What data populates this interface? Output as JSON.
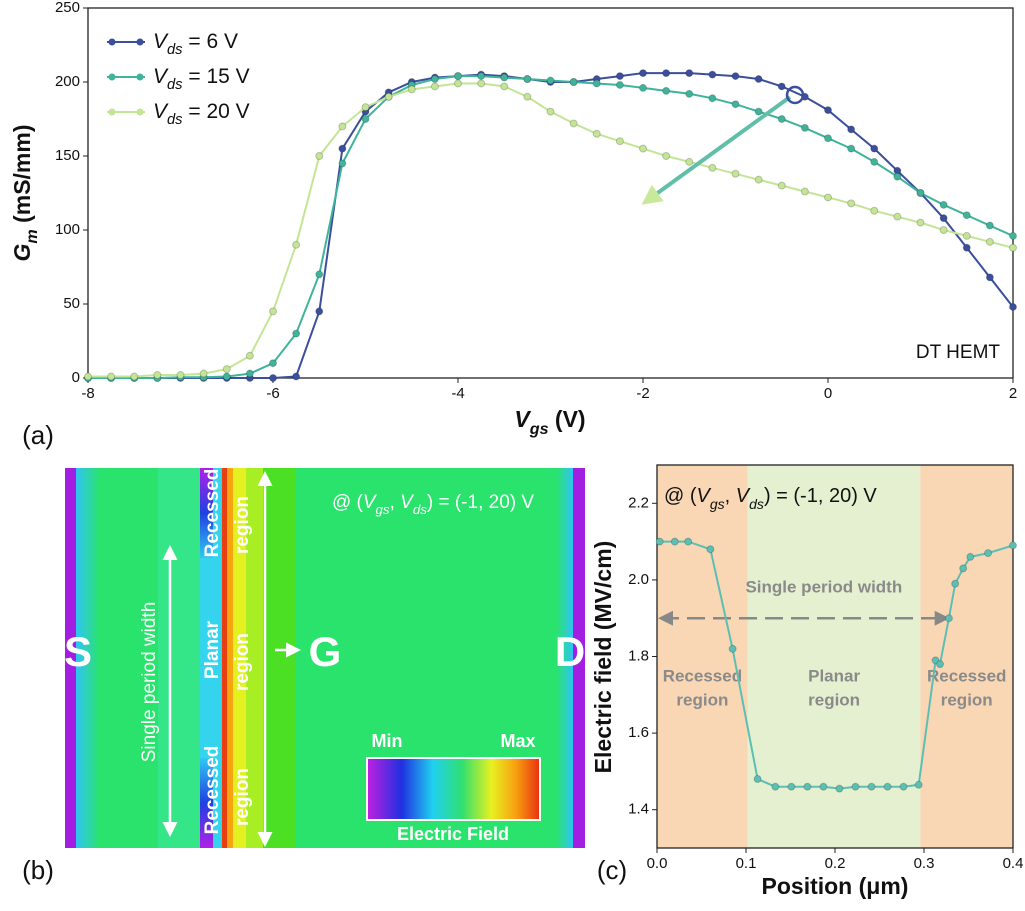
{
  "chart_data": [
    {
      "type": "line",
      "panel_label": "(a)",
      "xlabel": "Vgs (V)",
      "ylabel": "Gm (mS/mm)",
      "annotation": "DT HEMT",
      "xlim": [
        -8,
        2
      ],
      "ylim": [
        0,
        250
      ],
      "xticks": [
        -8,
        -6,
        -4,
        -2,
        0,
        2
      ],
      "yticks": [
        0,
        50,
        100,
        150,
        200,
        250
      ],
      "legend": "upper left",
      "x": [
        -8,
        -7.75,
        -7.5,
        -7.25,
        -7,
        -6.75,
        -6.5,
        -6.25,
        -6,
        -5.75,
        -5.5,
        -5.25,
        -5,
        -4.75,
        -4.5,
        -4.25,
        -4,
        -3.75,
        -3.5,
        -3.25,
        -3,
        -2.75,
        -2.5,
        -2.25,
        -2,
        -1.75,
        -1.5,
        -1.25,
        -1,
        -0.75,
        -0.5,
        -0.25,
        0,
        0.25,
        0.5,
        0.75,
        1,
        1.25,
        1.5,
        1.75,
        2
      ],
      "series": [
        {
          "name": "Vds = 6 V",
          "color": "#3b4f9c",
          "values": [
            0,
            0,
            0,
            0,
            0,
            0,
            0,
            0,
            0,
            1,
            45,
            155,
            180,
            193,
            200,
            203,
            204,
            205,
            204,
            202,
            200,
            200,
            202,
            204,
            206,
            206,
            206,
            205,
            204,
            202,
            197,
            190,
            181,
            168,
            155,
            140,
            125,
            108,
            88,
            68,
            48
          ]
        },
        {
          "name": "Vds = 15 V",
          "color": "#3fb49a",
          "values": [
            0,
            0,
            0,
            0,
            0.5,
            0.5,
            1,
            3,
            10,
            30,
            70,
            145,
            175,
            190,
            198,
            202,
            204,
            204,
            203,
            202,
            201,
            200,
            199,
            198,
            196,
            194,
            192,
            189,
            185,
            180,
            175,
            169,
            162,
            155,
            146,
            136,
            125,
            117,
            110,
            103,
            96
          ]
        },
        {
          "name": "Vds = 20 V",
          "color": "#c3e595",
          "values": [
            1,
            1,
            1,
            2,
            2,
            3,
            6,
            15,
            45,
            90,
            150,
            170,
            183,
            190,
            195,
            197,
            199,
            199,
            197,
            190,
            180,
            172,
            165,
            160,
            155,
            150,
            146,
            142,
            138,
            134,
            130,
            126,
            122,
            118,
            113,
            109,
            105,
            100,
            96,
            92,
            88
          ]
        }
      ]
    },
    {
      "type": "line",
      "panel_label": "(c)",
      "xlabel": "Position (μm)",
      "ylabel": "Electric field (MV/cm)",
      "annotation": "@ (Vgs, Vds) = (-1, 20) V",
      "xlim": [
        0,
        0.4
      ],
      "ylim": [
        1.3,
        2.3
      ],
      "xticks": [
        {
          "value": 0,
          "label": "0.0"
        },
        0.1,
        0.2,
        0.3,
        0.4
      ],
      "yticks": [
        1.4,
        1.6,
        1.8,
        {
          "value": 2,
          "label": "2.0"
        },
        2.2
      ],
      "regions": [
        {
          "from": 0,
          "to": 0.102,
          "color": "#f9d6b4",
          "label": [
            "Recessed",
            "region"
          ]
        },
        {
          "from": 0.102,
          "to": 0.296,
          "color": "#e4f0cf",
          "label": [
            "Planar",
            "region"
          ]
        },
        {
          "from": 0.296,
          "to": 0.4,
          "color": "#f9d6b4",
          "label": [
            "Recessed",
            "region"
          ]
        }
      ],
      "span": {
        "from": 0,
        "to": 0.33,
        "y": 1.9,
        "label": "Single period width"
      },
      "x": [
        0.003,
        0.02,
        0.035,
        0.06,
        0.085,
        0.113,
        0.133,
        0.151,
        0.169,
        0.187,
        0.205,
        0.223,
        0.241,
        0.259,
        0.277,
        0.294,
        0.313,
        0.318,
        0.328,
        0.335,
        0.344,
        0.352,
        0.372,
        0.4
      ],
      "series": [
        {
          "color": "#5cbfb4",
          "values": [
            2.1,
            2.1,
            2.1,
            2.08,
            1.82,
            1.48,
            1.46,
            1.46,
            1.46,
            1.46,
            1.455,
            1.46,
            1.46,
            1.46,
            1.46,
            1.465,
            1.79,
            1.78,
            1.9,
            1.99,
            2.03,
            2.06,
            2.07,
            2.09
          ]
        }
      ]
    }
  ],
  "panel_b": {
    "panel_label": "(b)",
    "electrodes": [
      "S",
      "G",
      "D"
    ],
    "annotation": "@ (Vgs, Vds) = (-1, 20) V",
    "left_column": [
      "Recessed",
      "Planar",
      "Recessed"
    ],
    "right_column": [
      "region",
      "region",
      "region"
    ],
    "width_label": "Single period width",
    "colorbar": {
      "min": "Min",
      "max": "Max",
      "label": "Electric Field"
    }
  }
}
